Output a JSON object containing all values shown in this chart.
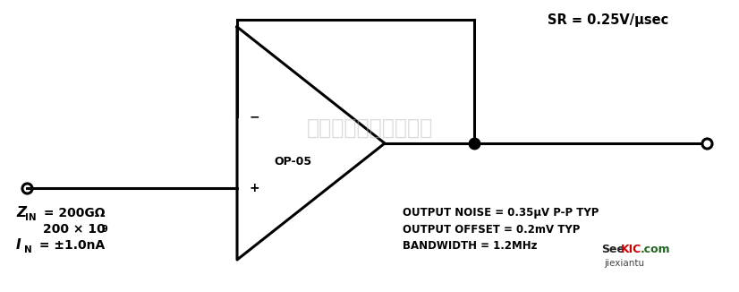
{
  "bg_color": "#ffffff",
  "line_color": "#000000",
  "watermark_text": "杭州将客科技有限公司",
  "sr_text": "SR = 0.25V/μsec",
  "specs_text": [
    "OUTPUT NOISE = 0.35μV P-P TYP",
    "OUTPUT OFFSET = 0.2mV TYP",
    "BANDWIDTH = 1.2MHz"
  ],
  "opamp_label": "OP-05",
  "zin_main": "Z",
  "zin_sub": "IN",
  "zin_val": " = 200GΩ",
  "zin_200": "200 × 10",
  "zin_sup": "9",
  "in_main": "I",
  "in_sub": "N",
  "in_val": " = ±1.0nA"
}
